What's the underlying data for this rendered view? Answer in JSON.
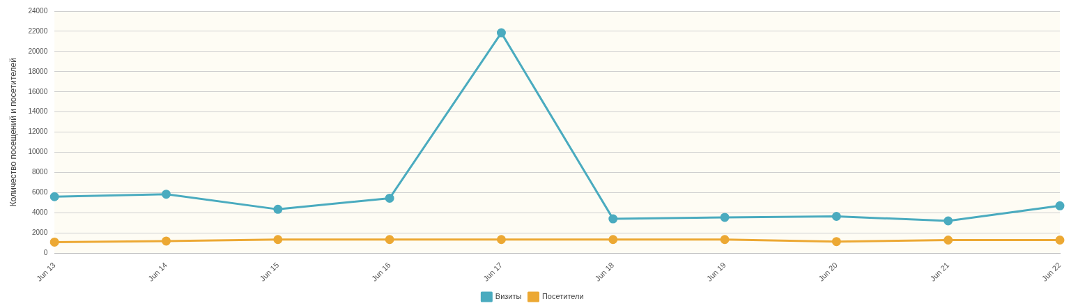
{
  "chart_data": {
    "type": "line",
    "ylabel": "Количество посещений и посетителей",
    "categories": [
      "Jun 13",
      "Jun 14",
      "Jun 15",
      "Jun 16",
      "Jun 17",
      "Jun 18",
      "Jun 19",
      "Jun 20",
      "Jun 21",
      "Jun 22"
    ],
    "series": [
      {
        "name": "Визиты",
        "color": "#4aabbf",
        "values": [
          5600,
          5850,
          4350,
          5450,
          21850,
          3400,
          3550,
          3650,
          3200,
          4700
        ]
      },
      {
        "name": "Посетители",
        "color": "#eca833",
        "values": [
          1100,
          1200,
          1350,
          1350,
          1350,
          1350,
          1350,
          1150,
          1300,
          1300
        ]
      }
    ],
    "ylim": [
      0,
      24000
    ],
    "yticks": [
      0,
      2000,
      4000,
      6000,
      8000,
      10000,
      12000,
      14000,
      16000,
      18000,
      20000,
      22000,
      24000
    ],
    "grid": "y",
    "legend": "bottom",
    "marker": "circle",
    "line_style": "solid"
  }
}
